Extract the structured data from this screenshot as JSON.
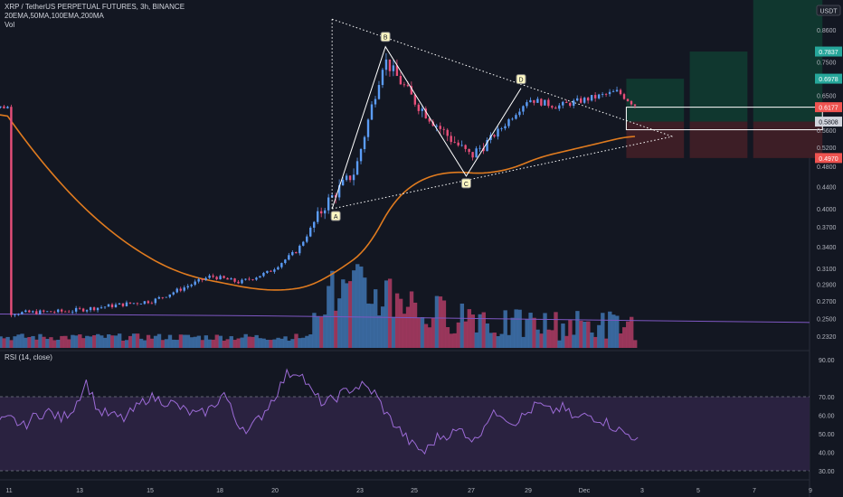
{
  "header": {
    "symbol_line": "XRP / TetherUS PERPETUAL FUTURES, 3h, BINANCE",
    "indicators_line": "20EMA,50MA,100EMA,200MA",
    "volume_label": "Vol",
    "rsi_label": "RSI (14, close)"
  },
  "price_axis": {
    "currency_badge": "USDT",
    "ticks": [
      "0.8600",
      "0.7500",
      "0.6500",
      "0.5600",
      "0.5200",
      "0.4800",
      "0.4400",
      "0.4000",
      "0.3700",
      "0.3400",
      "0.3100",
      "0.2900",
      "0.2700",
      "0.2500",
      "0.2320"
    ],
    "badges": [
      {
        "label": "0.7837",
        "color": "#26a69a"
      },
      {
        "label": "0.6978",
        "color": "#26a69a"
      },
      {
        "label": "0.6177",
        "color": "#ef5350"
      },
      {
        "label": "0.5808",
        "color": "#d1d4dc"
      },
      {
        "label": "0.4970",
        "color": "#ef5350"
      }
    ]
  },
  "rsi_axis": {
    "ticks": [
      "90.00",
      "70.00",
      "60.00",
      "50.00",
      "40.00",
      "30.00"
    ]
  },
  "time_axis": {
    "labels": [
      "11",
      "13",
      "15",
      "18",
      "20",
      "23",
      "25",
      "27",
      "29",
      "Dec",
      "3",
      "5",
      "7",
      "9"
    ]
  },
  "pattern_points": {
    "A": "A",
    "B": "B",
    "C": "C",
    "D": "D"
  },
  "colors": {
    "background": "#131722",
    "up": "#5b9cf6",
    "down": "#e84f7a",
    "volume_up": "#3d6fa8",
    "volume_down": "#a63a60",
    "ema_orange": "#e07b1f",
    "ma_purple": "#7e57c2",
    "rsi_line": "#9c6bd6",
    "rsi_band": "#2a2240",
    "pattern_line": "#ffffff",
    "target_green": "#10372f",
    "stop_red": "#3d1e26"
  },
  "chart_data": {
    "type": "candlestick",
    "title": "XRP / TetherUS PERPETUAL FUTURES, 3h, BINANCE",
    "timeframe": "3h",
    "x_ticks": [
      "11",
      "13",
      "15",
      "18",
      "20",
      "23",
      "25",
      "27",
      "29",
      "Dec",
      "3",
      "5",
      "7",
      "9"
    ],
    "y_ticks": [
      0.86,
      0.75,
      0.65,
      0.56,
      0.52,
      0.48,
      0.44,
      0.4,
      0.37,
      0.34,
      0.31,
      0.29,
      0.27,
      0.25,
      0.232
    ],
    "approx_close_path": [
      {
        "date": "11",
        "close": 0.256
      },
      {
        "date": "13",
        "close": 0.258
      },
      {
        "date": "15",
        "close": 0.266
      },
      {
        "date": "16",
        "close": 0.27
      },
      {
        "date": "18",
        "close": 0.3
      },
      {
        "date": "19",
        "close": 0.292
      },
      {
        "date": "20",
        "close": 0.305
      },
      {
        "date": "21",
        "close": 0.335
      },
      {
        "date": "22",
        "close": 0.41
      },
      {
        "date": "23",
        "close": 0.47
      },
      {
        "date": "24",
        "close": 0.76
      },
      {
        "date": "25",
        "close": 0.64
      },
      {
        "date": "26",
        "close": 0.56
      },
      {
        "date": "27",
        "close": 0.5
      },
      {
        "date": "28",
        "close": 0.56
      },
      {
        "date": "29",
        "close": 0.64
      },
      {
        "date": "30",
        "close": 0.62
      },
      {
        "date": "Dec",
        "close": 0.66
      },
      {
        "date": "1",
        "close": 0.618
      }
    ],
    "pattern": [
      {
        "label": "A",
        "price": 0.4
      },
      {
        "label": "B",
        "price": 0.8
      },
      {
        "label": "C",
        "price": 0.46
      },
      {
        "label": "D",
        "price": 0.67
      }
    ],
    "levels": {
      "last": 0.6177,
      "entry": 0.5808,
      "target_1": 0.6978,
      "target_2": 0.7837,
      "stop": 0.497
    },
    "rsi": {
      "period": 14,
      "levels": [
        70,
        30
      ],
      "approx_values": [
        55,
        56,
        58,
        54,
        60,
        62,
        58,
        64,
        78,
        62,
        60,
        58,
        64,
        70,
        68,
        66,
        62,
        60,
        64,
        72,
        56,
        52,
        60,
        70,
        82,
        84,
        72,
        66,
        70,
        74,
        76,
        72,
        60,
        52,
        44,
        40,
        48,
        50,
        52,
        46,
        58,
        62,
        56,
        60,
        66,
        62,
        64,
        58,
        60,
        58,
        54,
        50,
        48
      ]
    }
  }
}
